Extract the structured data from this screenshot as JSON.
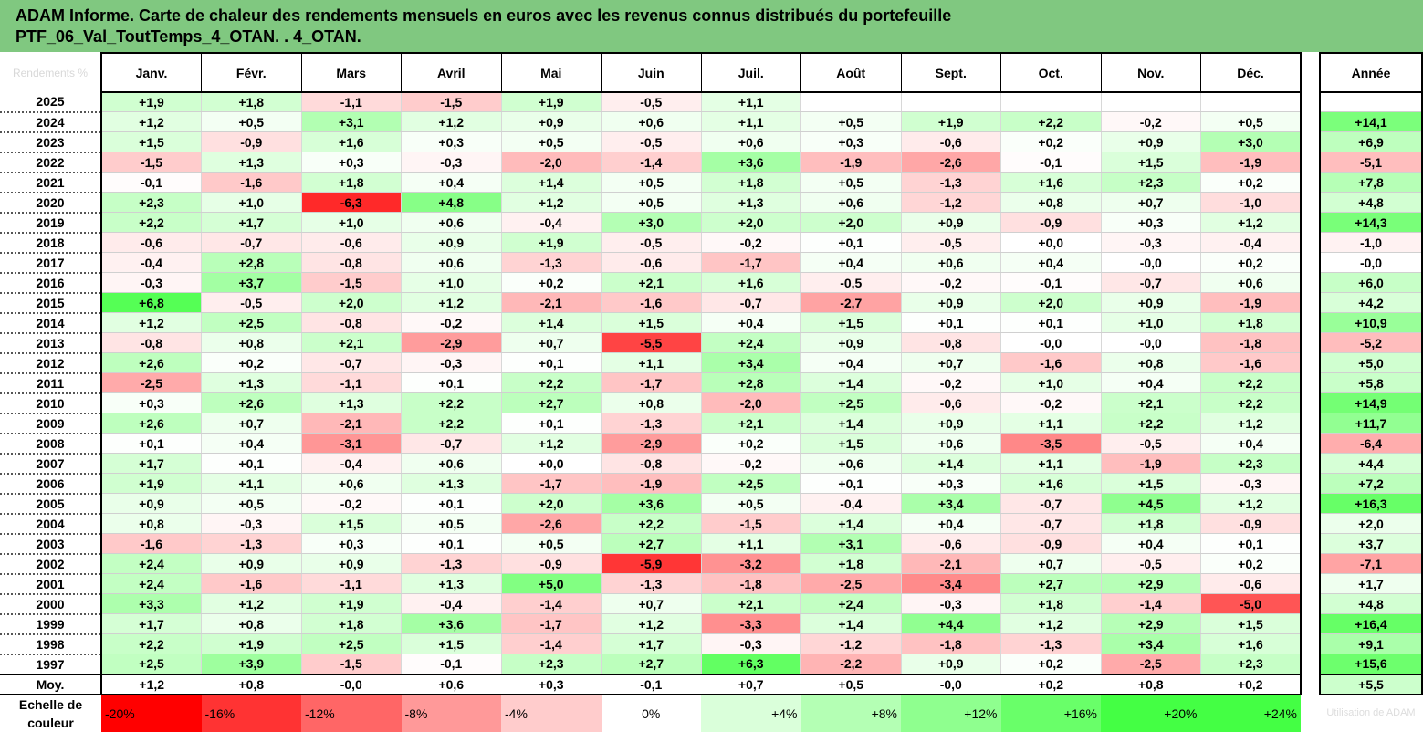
{
  "title": {
    "line1": "ADAM Informe. Carte de chaleur des rendements mensuels en euros avec les revenus connus distribués du portefeuille",
    "line2": "PTF_06_Val_ToutTemps_4_OTAN. . 4_OTAN."
  },
  "colors": {
    "header_bg": "#80c880",
    "max_green": "#44ff44",
    "max_red": "#ff0000"
  },
  "corner_label": "Rendements %",
  "year_header": "Année",
  "avg_label": "Moy.",
  "scale_label": "Echelle de couleur",
  "scale_note": "Utilisation de ADAM",
  "scale": [
    "-20%",
    "-16%",
    "-12%",
    "-8%",
    "-4%",
    "0%",
    "+4%",
    "+8%",
    "+12%",
    "+16%",
    "+20%",
    "+24%"
  ],
  "chart_data": {
    "type": "heatmap",
    "title": "ADAM Informe. Carte de chaleur des rendements mensuels en euros avec les revenus connus distribués du portefeuille PTF_06_Val_ToutTemps_4_OTAN. . 4_OTAN.",
    "columns": [
      "Janv.",
      "Févr.",
      "Mars",
      "Avril",
      "Mai",
      "Juin",
      "Juil.",
      "Août",
      "Sept.",
      "Oct.",
      "Nov.",
      "Déc."
    ],
    "rows": [
      {
        "year": "2025",
        "values": [
          "+1,9",
          "+1,8",
          "-1,1",
          "-1,5",
          "+1,9",
          "-0,5",
          "+1,1",
          "",
          "",
          "",
          "",
          ""
        ],
        "annual": ""
      },
      {
        "year": "2024",
        "values": [
          "+1,2",
          "+0,5",
          "+3,1",
          "+1,2",
          "+0,9",
          "+0,6",
          "+1,1",
          "+0,5",
          "+1,9",
          "+2,2",
          "-0,2",
          "+0,5"
        ],
        "annual": "+14,1"
      },
      {
        "year": "2023",
        "values": [
          "+1,5",
          "-0,9",
          "+1,6",
          "+0,3",
          "+0,5",
          "-0,5",
          "+0,6",
          "+0,3",
          "-0,6",
          "+0,2",
          "+0,9",
          "+3,0"
        ],
        "annual": "+6,9"
      },
      {
        "year": "2022",
        "values": [
          "-1,5",
          "+1,3",
          "+0,3",
          "-0,3",
          "-2,0",
          "-1,4",
          "+3,6",
          "-1,9",
          "-2,6",
          "-0,1",
          "+1,5",
          "-1,9"
        ],
        "annual": "-5,1"
      },
      {
        "year": "2021",
        "values": [
          "-0,1",
          "-1,6",
          "+1,8",
          "+0,4",
          "+1,4",
          "+0,5",
          "+1,8",
          "+0,5",
          "-1,3",
          "+1,6",
          "+2,3",
          "+0,2"
        ],
        "annual": "+7,8"
      },
      {
        "year": "2020",
        "values": [
          "+2,3",
          "+1,0",
          "-6,3",
          "+4,8",
          "+1,2",
          "+0,5",
          "+1,3",
          "+0,6",
          "-1,2",
          "+0,8",
          "+0,7",
          "-1,0"
        ],
        "annual": "+4,8"
      },
      {
        "year": "2019",
        "values": [
          "+2,2",
          "+1,7",
          "+1,0",
          "+0,6",
          "-0,4",
          "+3,0",
          "+2,0",
          "+2,0",
          "+0,9",
          "-0,9",
          "+0,3",
          "+1,2"
        ],
        "annual": "+14,3"
      },
      {
        "year": "2018",
        "values": [
          "-0,6",
          "-0,7",
          "-0,6",
          "+0,9",
          "+1,9",
          "-0,5",
          "-0,2",
          "+0,1",
          "-0,5",
          "+0,0",
          "-0,3",
          "-0,4"
        ],
        "annual": "-1,0"
      },
      {
        "year": "2017",
        "values": [
          "-0,4",
          "+2,8",
          "-0,8",
          "+0,6",
          "-1,3",
          "-0,6",
          "-1,7",
          "+0,4",
          "+0,6",
          "+0,4",
          "-0,0",
          "+0,2"
        ],
        "annual": "-0,0"
      },
      {
        "year": "2016",
        "values": [
          "-0,3",
          "+3,7",
          "-1,5",
          "+1,0",
          "+0,2",
          "+2,1",
          "+1,6",
          "-0,5",
          "-0,2",
          "-0,1",
          "-0,7",
          "+0,6"
        ],
        "annual": "+6,0"
      },
      {
        "year": "2015",
        "values": [
          "+6,8",
          "-0,5",
          "+2,0",
          "+1,2",
          "-2,1",
          "-1,6",
          "-0,7",
          "-2,7",
          "+0,9",
          "+2,0",
          "+0,9",
          "-1,9"
        ],
        "annual": "+4,2"
      },
      {
        "year": "2014",
        "values": [
          "+1,2",
          "+2,5",
          "-0,8",
          "-0,2",
          "+1,4",
          "+1,5",
          "+0,4",
          "+1,5",
          "+0,1",
          "+0,1",
          "+1,0",
          "+1,8"
        ],
        "annual": "+10,9"
      },
      {
        "year": "2013",
        "values": [
          "-0,8",
          "+0,8",
          "+2,1",
          "-2,9",
          "+0,7",
          "-5,5",
          "+2,4",
          "+0,9",
          "-0,8",
          "-0,0",
          "-0,0",
          "-1,8"
        ],
        "annual": "-5,2"
      },
      {
        "year": "2012",
        "values": [
          "+2,6",
          "+0,2",
          "-0,7",
          "-0,3",
          "+0,1",
          "+1,1",
          "+3,4",
          "+0,4",
          "+0,7",
          "-1,6",
          "+0,8",
          "-1,6"
        ],
        "annual": "+5,0"
      },
      {
        "year": "2011",
        "values": [
          "-2,5",
          "+1,3",
          "-1,1",
          "+0,1",
          "+2,2",
          "-1,7",
          "+2,8",
          "+1,4",
          "-0,2",
          "+1,0",
          "+0,4",
          "+2,2"
        ],
        "annual": "+5,8"
      },
      {
        "year": "2010",
        "values": [
          "+0,3",
          "+2,6",
          "+1,3",
          "+2,2",
          "+2,7",
          "+0,8",
          "-2,0",
          "+2,5",
          "-0,6",
          "-0,2",
          "+2,1",
          "+2,2"
        ],
        "annual": "+14,9"
      },
      {
        "year": "2009",
        "values": [
          "+2,6",
          "+0,7",
          "-2,1",
          "+2,2",
          "+0,1",
          "-1,3",
          "+2,1",
          "+1,4",
          "+0,9",
          "+1,1",
          "+2,2",
          "+1,2"
        ],
        "annual": "+11,7"
      },
      {
        "year": "2008",
        "values": [
          "+0,1",
          "+0,4",
          "-3,1",
          "-0,7",
          "+1,2",
          "-2,9",
          "+0,2",
          "+1,5",
          "+0,6",
          "-3,5",
          "-0,5",
          "+0,4"
        ],
        "annual": "-6,4"
      },
      {
        "year": "2007",
        "values": [
          "+1,7",
          "+0,1",
          "-0,4",
          "+0,6",
          "+0,0",
          "-0,8",
          "-0,2",
          "+0,6",
          "+1,4",
          "+1,1",
          "-1,9",
          "+2,3"
        ],
        "annual": "+4,4"
      },
      {
        "year": "2006",
        "values": [
          "+1,9",
          "+1,1",
          "+0,6",
          "+1,3",
          "-1,7",
          "-1,9",
          "+2,5",
          "+0,1",
          "+0,3",
          "+1,6",
          "+1,5",
          "-0,3"
        ],
        "annual": "+7,2"
      },
      {
        "year": "2005",
        "values": [
          "+0,9",
          "+0,5",
          "-0,2",
          "+0,1",
          "+2,0",
          "+3,6",
          "+0,5",
          "-0,4",
          "+3,4",
          "-0,7",
          "+4,5",
          "+1,2"
        ],
        "annual": "+16,3"
      },
      {
        "year": "2004",
        "values": [
          "+0,8",
          "-0,3",
          "+1,5",
          "+0,5",
          "-2,6",
          "+2,2",
          "-1,5",
          "+1,4",
          "+0,4",
          "-0,7",
          "+1,8",
          "-0,9"
        ],
        "annual": "+2,0"
      },
      {
        "year": "2003",
        "values": [
          "-1,6",
          "-1,3",
          "+0,3",
          "+0,1",
          "+0,5",
          "+2,7",
          "+1,1",
          "+3,1",
          "-0,6",
          "-0,9",
          "+0,4",
          "+0,1"
        ],
        "annual": "+3,7"
      },
      {
        "year": "2002",
        "values": [
          "+2,4",
          "+0,9",
          "+0,9",
          "-1,3",
          "-0,9",
          "-5,9",
          "-3,2",
          "+1,8",
          "-2,1",
          "+0,7",
          "-0,5",
          "+0,2"
        ],
        "annual": "-7,1"
      },
      {
        "year": "2001",
        "values": [
          "+2,4",
          "-1,6",
          "-1,1",
          "+1,3",
          "+5,0",
          "-1,3",
          "-1,8",
          "-2,5",
          "-3,4",
          "+2,7",
          "+2,9",
          "-0,6"
        ],
        "annual": "+1,7"
      },
      {
        "year": "2000",
        "values": [
          "+3,3",
          "+1,2",
          "+1,9",
          "-0,4",
          "-1,4",
          "+0,7",
          "+2,1",
          "+2,4",
          "-0,3",
          "+1,8",
          "-1,4",
          "-5,0"
        ],
        "annual": "+4,8"
      },
      {
        "year": "1999",
        "values": [
          "+1,7",
          "+0,8",
          "+1,8",
          "+3,6",
          "-1,7",
          "+1,2",
          "-3,3",
          "+1,4",
          "+4,4",
          "+1,2",
          "+2,9",
          "+1,5"
        ],
        "annual": "+16,4"
      },
      {
        "year": "1998",
        "values": [
          "+2,2",
          "+1,9",
          "+2,5",
          "+1,5",
          "-1,4",
          "+1,7",
          "-0,3",
          "-1,2",
          "-1,8",
          "-1,3",
          "+3,4",
          "+1,6"
        ],
        "annual": "+9,1"
      },
      {
        "year": "1997",
        "values": [
          "+2,5",
          "+3,9",
          "-1,5",
          "-0,1",
          "+2,3",
          "+2,7",
          "+6,3",
          "-2,2",
          "+0,9",
          "+0,2",
          "-2,5",
          "+2,3"
        ],
        "annual": "+15,6"
      }
    ],
    "average": {
      "values": [
        "+1,2",
        "+0,8",
        "-0,0",
        "+0,6",
        "+0,3",
        "-0,1",
        "+0,7",
        "+0,5",
        "-0,0",
        "+0,2",
        "+0,8",
        "+0,2"
      ],
      "annual": "+5,5"
    },
    "color_scale": {
      "min": -20,
      "max": 24,
      "unit": "%"
    }
  }
}
